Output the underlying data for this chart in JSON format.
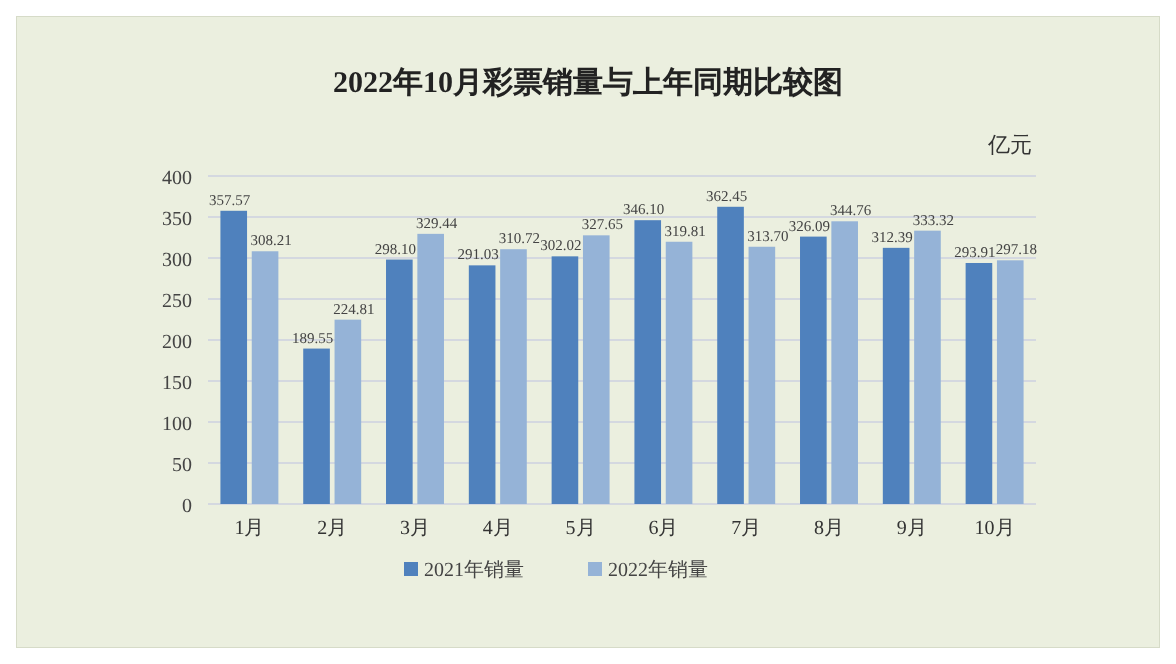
{
  "chart_data": {
    "type": "bar",
    "title": "2022年10月彩票销量与上年同期比较图",
    "ylabel": "亿元",
    "categories": [
      "1月",
      "2月",
      "3月",
      "4月",
      "5月",
      "6月",
      "7月",
      "8月",
      "9月",
      "10月"
    ],
    "series": [
      {
        "name": "2021年销量",
        "color": "#4f81bd",
        "values": [
          357.57,
          189.55,
          298.1,
          291.03,
          302.02,
          346.1,
          362.45,
          326.09,
          312.39,
          293.91
        ],
        "value_labels": [
          "357.57",
          "189.55",
          "298.10",
          "291.03",
          "302.02",
          "346.10",
          "362.45",
          "326.09",
          "312.39",
          "293.91"
        ]
      },
      {
        "name": "2022年销量",
        "color": "#95b3d7",
        "values": [
          308.21,
          224.81,
          329.44,
          310.72,
          327.65,
          319.81,
          313.7,
          344.76,
          333.32,
          297.18
        ],
        "value_labels": [
          "308.21",
          "224.81",
          "329.44",
          "310.72",
          "327.65",
          "319.81",
          "313.70",
          "344.76",
          "333.32",
          "297.18"
        ]
      }
    ],
    "ylim": [
      0,
      400
    ],
    "yticks": [
      0,
      50,
      100,
      150,
      200,
      250,
      300,
      350,
      400
    ],
    "grid": "y",
    "legend": "bottom"
  }
}
